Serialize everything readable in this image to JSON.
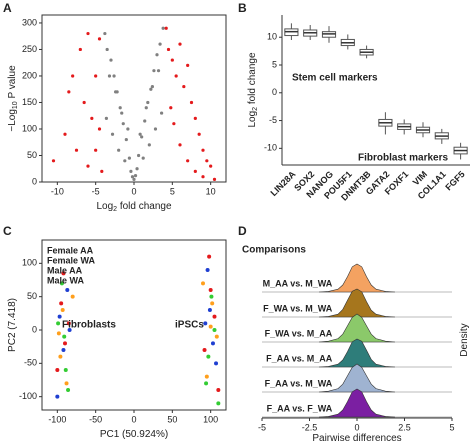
{
  "chart_data": [
    {
      "type": "scatter",
      "panel": "A",
      "x_label": [
        "Log",
        "2",
        " fold change"
      ],
      "y_label": [
        "−Log",
        "10",
        " P value"
      ],
      "xlim": [
        -12,
        12
      ],
      "ylim": [
        0,
        315
      ],
      "xticks": [
        -10,
        -5,
        0,
        5,
        10
      ],
      "yticks": [
        0,
        50,
        100,
        150,
        200,
        250,
        300
      ],
      "series": [
        {
          "color": "#808080",
          "x": [
            -3.8,
            -3.5,
            -3,
            -2.6,
            -2.2,
            -1.8,
            -1.4,
            -1,
            -0.6,
            -0.2,
            0.2,
            0.6,
            1,
            1.4,
            1.8,
            2.2,
            2.6,
            3,
            3.4,
            3.8,
            -3.6,
            -2.8,
            -2,
            -1.2,
            -0.4,
            0.4,
            1.2,
            2,
            2.8,
            3.6,
            -3.2,
            -2.4,
            -1.6,
            -0.8,
            0,
            0.8,
            1.6,
            2.4,
            3.2
          ],
          "values": [
            280,
            250,
            230,
            200,
            170,
            140,
            110,
            80,
            45,
            10,
            12,
            50,
            85,
            115,
            150,
            175,
            210,
            240,
            260,
            290,
            120,
            90,
            60,
            40,
            20,
            25,
            45,
            70,
            100,
            130,
            200,
            170,
            130,
            100,
            5,
            90,
            140,
            180,
            210
          ]
        },
        {
          "color": "#e41a1c",
          "x": [
            -10.5,
            -9,
            -8,
            -7,
            -6.5,
            -6,
            -5.5,
            -5,
            -4.5,
            -4.2,
            -8.5,
            -7.5,
            -6,
            -5,
            -4.5,
            4.2,
            4.5,
            5,
            5.5,
            6,
            6.5,
            7,
            7.5,
            8,
            8.5,
            9,
            9.5,
            10,
            4.8,
            6,
            7,
            8,
            9,
            10.5,
            5.2
          ],
          "values": [
            40,
            90,
            200,
            250,
            150,
            280,
            120,
            60,
            100,
            20,
            170,
            60,
            30,
            200,
            270,
            290,
            250,
            230,
            200,
            260,
            180,
            220,
            150,
            120,
            90,
            60,
            40,
            30,
            140,
            70,
            40,
            20,
            10,
            5,
            110
          ]
        }
      ]
    },
    {
      "type": "box",
      "panel": "B",
      "y_label": [
        "Log",
        "2",
        " fold change"
      ],
      "annotations": [
        "Stem cell markers",
        "Fibroblast markers"
      ],
      "categories": [
        "LIN28A",
        "SOX2",
        "NANOG",
        "POU5F1",
        "DNMT3B",
        "GATA2",
        "FOXF1",
        "VIM",
        "COL1A1",
        "FGF5"
      ],
      "boxes": [
        {
          "low": 9.5,
          "q1": 10.3,
          "median": 11,
          "q3": 11.5,
          "high": 12.5
        },
        {
          "low": 9.5,
          "q1": 10.2,
          "median": 10.8,
          "q3": 11.3,
          "high": 12.2
        },
        {
          "low": 9,
          "q1": 10,
          "median": 10.6,
          "q3": 11,
          "high": 12
        },
        {
          "low": 7.8,
          "q1": 8.5,
          "median": 9,
          "q3": 9.6,
          "high": 10.5
        },
        {
          "low": 6.2,
          "q1": 6.8,
          "median": 7.3,
          "q3": 7.8,
          "high": 8.5
        },
        {
          "low": -7.5,
          "q1": -6,
          "median": -5.4,
          "q3": -4.8,
          "high": -3.5
        },
        {
          "low": -7.5,
          "q1": -6.6,
          "median": -6.1,
          "q3": -5.6,
          "high": -4.8
        },
        {
          "low": -8,
          "q1": -7.2,
          "median": -6.7,
          "q3": -6.2,
          "high": -5.3
        },
        {
          "low": -9.2,
          "q1": -8.3,
          "median": -7.8,
          "q3": -7.2,
          "high": -6.5
        },
        {
          "low": -12,
          "q1": -11,
          "median": -10.4,
          "q3": -9.8,
          "high": -9
        }
      ],
      "ylim": [
        -13,
        14
      ],
      "yticks": [
        -10,
        -5,
        0,
        5,
        10
      ]
    },
    {
      "type": "scatter",
      "panel": "C",
      "x_label": [
        "PC1 (50.924%)"
      ],
      "y_label": [
        "PC2 (7.418)"
      ],
      "annotations": [
        "Fibroblasts",
        "iPSCs"
      ],
      "xlim": [
        -120,
        120
      ],
      "ylim": [
        -120,
        135
      ],
      "xticks": [
        -100,
        -50,
        0,
        50,
        100
      ],
      "yticks": [
        -100,
        -50,
        0,
        50,
        100
      ],
      "series": [
        {
          "name": "Female AA",
          "color": "#e41a1c",
          "x": [
            -95,
            -90,
            -100,
            -85,
            -92,
            98,
            105,
            92,
            100,
            110
          ],
          "values": [
            40,
            -20,
            -60,
            10,
            85,
            110,
            20,
            -30,
            60,
            -90
          ]
        },
        {
          "name": "Female WA",
          "color": "#ff9f1c",
          "x": [
            -98,
            -88,
            -93,
            -80,
            -96,
            95,
            102,
            108,
            90,
            100
          ],
          "values": [
            -5,
            -80,
            30,
            50,
            -40,
            -70,
            40,
            -10,
            70,
            5
          ]
        },
        {
          "name": "Male AA",
          "color": "#1f3fd1",
          "x": [
            -97,
            -87,
            -92,
            -100,
            -84,
            96,
            103,
            99,
            107,
            93
          ],
          "values": [
            20,
            60,
            -30,
            -100,
            0,
            90,
            -20,
            30,
            -50,
            10
          ]
        },
        {
          "name": "Male WA",
          "color": "#33cc33",
          "x": [
            -94,
            -89,
            -99,
            -86,
            -91,
            97,
            101,
            105,
            94,
            110
          ],
          "values": [
            70,
            -60,
            10,
            -90,
            -10,
            -40,
            50,
            0,
            -80,
            -110
          ]
        }
      ]
    },
    {
      "type": "ridge",
      "panel": "D",
      "legend_title": "Comparisons",
      "x_label": [
        "Pairwise differences"
      ],
      "y_label": [
        "Density"
      ],
      "xlim": [
        -5,
        5
      ],
      "xticks": [
        -5,
        -2.5,
        0,
        2.5,
        5
      ],
      "x": [
        -2,
        -1.5,
        -1,
        -0.75,
        -0.5,
        -0.25,
        0,
        0.25,
        0.5,
        0.75,
        1,
        1.5,
        2
      ],
      "series": [
        {
          "name": "M_AA vs. M_WA",
          "color": "#f4a261",
          "values": [
            0,
            0.02,
            0.1,
            0.25,
            0.55,
            0.9,
            1,
            0.9,
            0.55,
            0.25,
            0.1,
            0.02,
            0
          ]
        },
        {
          "name": "F_WA vs. M_WA",
          "color": "#a6761d",
          "values": [
            0,
            0.02,
            0.1,
            0.27,
            0.6,
            0.92,
            1,
            0.9,
            0.55,
            0.24,
            0.1,
            0.02,
            0
          ]
        },
        {
          "name": "F_WA vs. M_AA",
          "color": "#8bc96a",
          "values": [
            0,
            0.03,
            0.12,
            0.28,
            0.58,
            0.88,
            1,
            0.88,
            0.58,
            0.28,
            0.12,
            0.03,
            0
          ]
        },
        {
          "name": "F_AA vs. M_AA",
          "color": "#2e7d7a",
          "values": [
            0,
            0.02,
            0.1,
            0.25,
            0.55,
            0.9,
            1,
            0.92,
            0.6,
            0.27,
            0.1,
            0.02,
            0
          ]
        },
        {
          "name": "F_AA vs. M_WA",
          "color": "#9fb3d1",
          "values": [
            0,
            0.03,
            0.12,
            0.28,
            0.58,
            0.88,
            1,
            0.88,
            0.58,
            0.28,
            0.12,
            0.03,
            0
          ]
        },
        {
          "name": "F_AA vs. F_WA",
          "color": "#7b1fa2",
          "values": [
            0,
            0.02,
            0.1,
            0.25,
            0.55,
            0.9,
            1,
            0.9,
            0.55,
            0.25,
            0.1,
            0.02,
            0
          ]
        }
      ]
    }
  ]
}
